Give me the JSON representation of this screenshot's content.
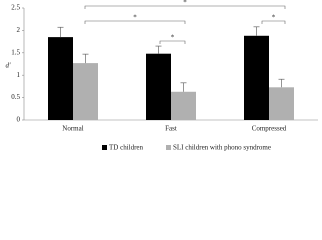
{
  "chart_data": {
    "type": "bar",
    "ylabel": "d'",
    "categories": [
      "Normal",
      "Fast",
      "Compressed"
    ],
    "series": [
      {
        "name": "TD children",
        "color": "#000000",
        "values": [
          1.85,
          1.48,
          1.88
        ],
        "errors": [
          0.22,
          0.17,
          0.2
        ]
      },
      {
        "name": "SLI children with phono syndrome",
        "color": "#b0b0b0",
        "values": [
          1.27,
          0.63,
          0.73
        ],
        "errors": [
          0.2,
          0.2,
          0.18
        ]
      }
    ],
    "ylim": [
      0,
      2.5
    ],
    "yticks": [
      0,
      0.5,
      1,
      1.5,
      2,
      2.5
    ],
    "grid": false,
    "legend": "bottom",
    "annotations": [
      "*",
      "*",
      "*",
      "*"
    ]
  }
}
